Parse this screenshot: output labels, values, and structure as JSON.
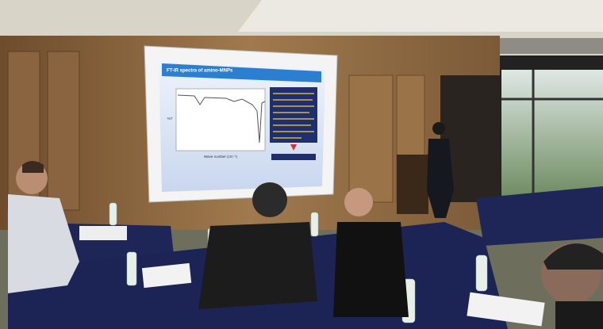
{
  "slide": {
    "title": "FT-IR spectra of amino-MNPs",
    "x_axis_label": "Wave number (cm⁻¹)",
    "y_axis_label": "%T"
  }
}
